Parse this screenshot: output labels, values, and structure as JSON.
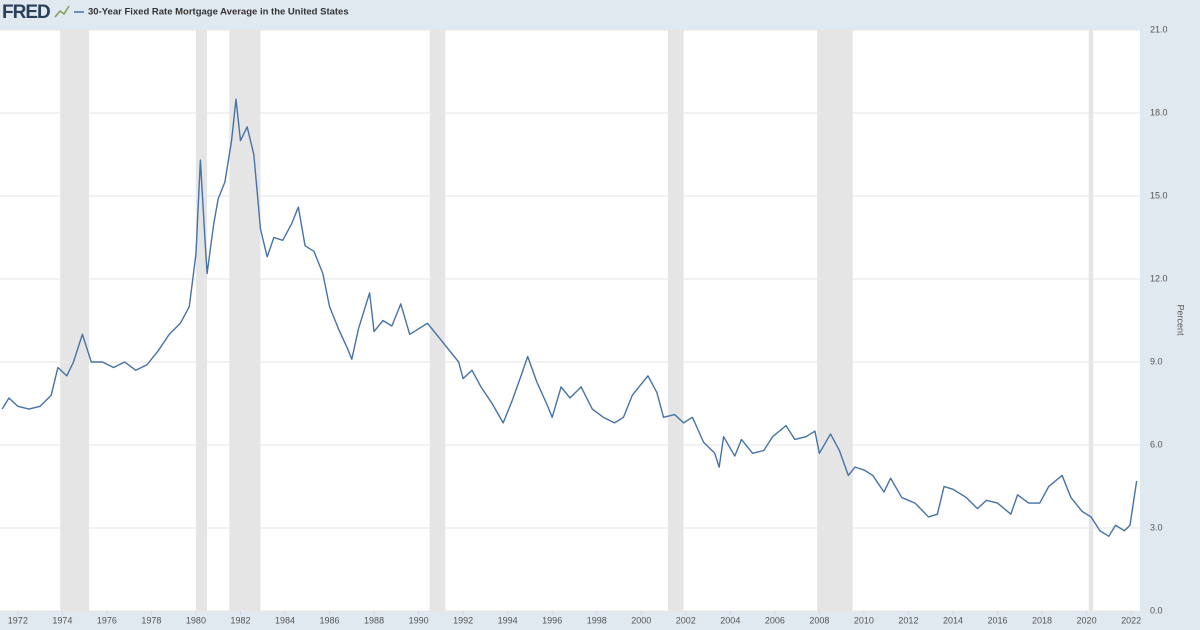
{
  "chart_data": {
    "type": "line",
    "brand": "FRED",
    "ylabel": "Percent",
    "grid": true,
    "recession_color": "#e5e5e5",
    "xlim": [
      1971.2,
      2022.4
    ],
    "xticks": [
      1972,
      1974,
      1976,
      1978,
      1980,
      1982,
      1984,
      1986,
      1988,
      1990,
      1992,
      1994,
      1996,
      1998,
      2000,
      2002,
      2004,
      2006,
      2008,
      2010,
      2012,
      2014,
      2016,
      2018,
      2020,
      2022
    ],
    "ylim": [
      0,
      21
    ],
    "yticks": [
      {
        "value": 0,
        "label": "0.0"
      },
      {
        "value": 3,
        "label": "3.0"
      },
      {
        "value": 6,
        "label": "6.0"
      },
      {
        "value": 9,
        "label": "9.0"
      },
      {
        "value": 12,
        "label": "12.0"
      },
      {
        "value": 15,
        "label": "15.0"
      },
      {
        "value": 18,
        "label": "18.0"
      },
      {
        "value": 21,
        "label": "21.0"
      }
    ],
    "recessions": [
      {
        "start": 1973.9,
        "end": 1975.2
      },
      {
        "start": 1980.0,
        "end": 1980.5
      },
      {
        "start": 1981.5,
        "end": 1982.9
      },
      {
        "start": 1990.5,
        "end": 1991.2
      },
      {
        "start": 2001.2,
        "end": 2001.9
      },
      {
        "start": 2007.9,
        "end": 2009.5
      },
      {
        "start": 2020.1,
        "end": 2020.3
      }
    ],
    "x": [
      1971.3,
      1971.6,
      1972.0,
      1972.5,
      1973.0,
      1973.5,
      1973.8,
      1974.2,
      1974.5,
      1974.9,
      1975.3,
      1975.8,
      1976.3,
      1976.8,
      1977.3,
      1977.8,
      1978.3,
      1978.8,
      1979.3,
      1979.7,
      1980.0,
      1980.2,
      1980.4,
      1980.5,
      1980.8,
      1981.0,
      1981.3,
      1981.6,
      1981.8,
      1982.0,
      1982.3,
      1982.6,
      1982.9,
      1983.2,
      1983.5,
      1983.9,
      1984.3,
      1984.6,
      1984.9,
      1985.3,
      1985.7,
      1986.0,
      1986.4,
      1986.8,
      1987.0,
      1987.3,
      1987.8,
      1988.0,
      1988.4,
      1988.8,
      1989.2,
      1989.6,
      1990.0,
      1990.4,
      1990.9,
      1991.3,
      1991.8,
      1992.0,
      1992.4,
      1992.8,
      1993.3,
      1993.8,
      1994.2,
      1994.6,
      1994.9,
      1995.3,
      1995.8,
      1996.0,
      1996.4,
      1996.8,
      1997.3,
      1997.8,
      1998.3,
      1998.8,
      1999.2,
      1999.6,
      2000.3,
      2000.7,
      2001.0,
      2001.5,
      2001.9,
      2002.3,
      2002.8,
      2003.3,
      2003.5,
      2003.7,
      2004.2,
      2004.5,
      2005.0,
      2005.5,
      2005.9,
      2006.5,
      2006.9,
      2007.4,
      2007.8,
      2008.0,
      2008.5,
      2008.9,
      2009.3,
      2009.6,
      2010.0,
      2010.4,
      2010.9,
      2011.2,
      2011.7,
      2012.3,
      2012.9,
      2013.3,
      2013.6,
      2014.0,
      2014.6,
      2015.1,
      2015.5,
      2016.0,
      2016.6,
      2016.9,
      2017.4,
      2017.9,
      2018.3,
      2018.9,
      2019.3,
      2019.8,
      2020.2,
      2020.6,
      2021.0,
      2021.3,
      2021.7,
      2021.95,
      2022.1,
      2022.25
    ],
    "series": [
      {
        "name": "30-Year Fixed Rate Mortgage Average in the United States",
        "color": "#4572a7",
        "values": [
          7.3,
          7.7,
          7.4,
          7.3,
          7.4,
          7.8,
          8.8,
          8.5,
          9.0,
          10.0,
          9.0,
          9.0,
          8.8,
          9.0,
          8.7,
          8.9,
          9.4,
          10.0,
          10.4,
          11.0,
          12.9,
          16.3,
          13.5,
          12.2,
          14.0,
          14.9,
          15.5,
          17.0,
          18.5,
          17.0,
          17.5,
          16.5,
          13.8,
          12.8,
          13.5,
          13.4,
          14.0,
          14.6,
          13.2,
          13.0,
          12.2,
          11.0,
          10.2,
          9.5,
          9.1,
          10.2,
          11.5,
          10.1,
          10.5,
          10.3,
          11.1,
          10.0,
          10.2,
          10.4,
          9.9,
          9.5,
          9.0,
          8.4,
          8.7,
          8.1,
          7.5,
          6.8,
          7.6,
          8.5,
          9.2,
          8.3,
          7.4,
          7.0,
          8.1,
          7.7,
          8.1,
          7.3,
          7.0,
          6.8,
          7.0,
          7.8,
          8.5,
          7.9,
          7.0,
          7.1,
          6.8,
          7.0,
          6.1,
          5.7,
          5.2,
          6.3,
          5.6,
          6.2,
          5.7,
          5.8,
          6.3,
          6.7,
          6.2,
          6.3,
          6.5,
          5.7,
          6.4,
          5.8,
          4.9,
          5.2,
          5.1,
          4.9,
          4.3,
          4.8,
          4.1,
          3.9,
          3.4,
          3.5,
          4.5,
          4.4,
          4.1,
          3.7,
          4.0,
          3.9,
          3.5,
          4.2,
          3.9,
          3.9,
          4.5,
          4.9,
          4.1,
          3.6,
          3.4,
          2.9,
          2.7,
          3.1,
          2.9,
          3.1,
          3.9,
          4.7
        ]
      }
    ]
  }
}
